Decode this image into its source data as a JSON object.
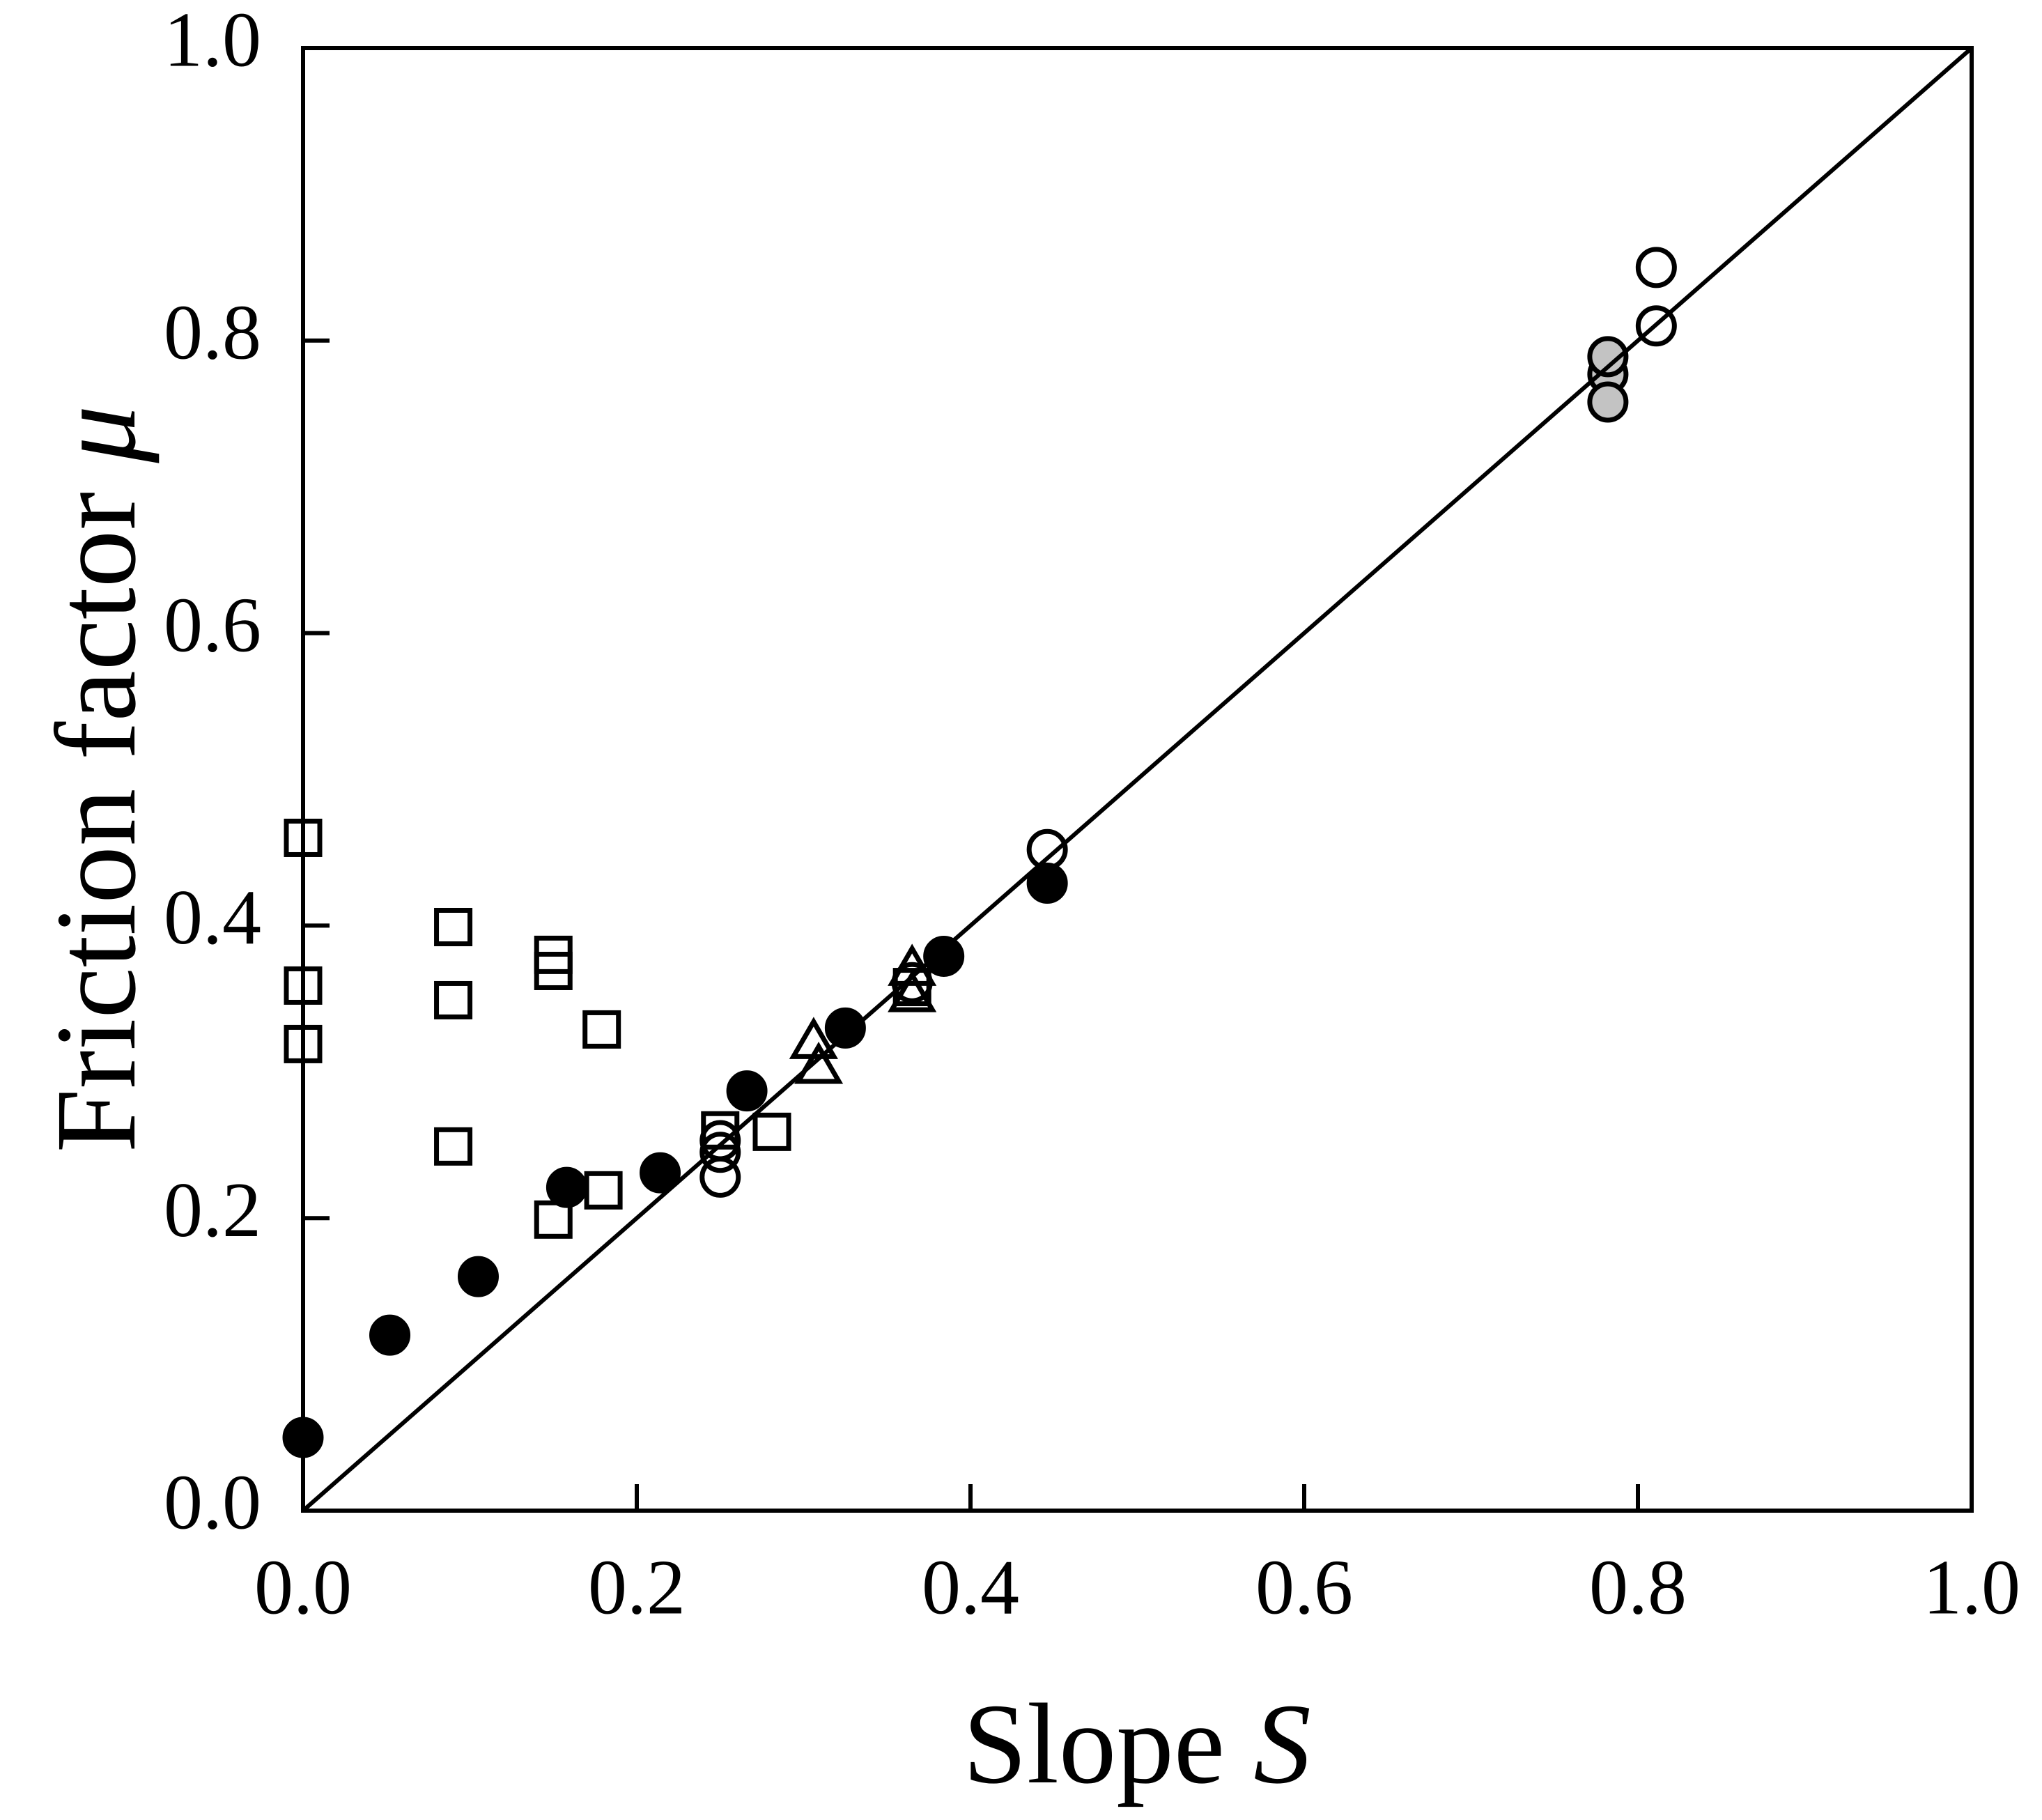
{
  "figure": {
    "background": "#ffffff",
    "ink": "#000000",
    "gray_fill": "#c3c3c3"
  },
  "chart_data": {
    "type": "scatter",
    "title": "",
    "xlabel": {
      "text": "Slope ",
      "symbol": "S"
    },
    "ylabel": {
      "text": "Friction factor ",
      "symbol": "μ"
    },
    "xlim": [
      0.0,
      1.0
    ],
    "ylim": [
      0.0,
      1.0
    ],
    "grid": false,
    "legend": "none",
    "x_ticks": [
      0.0,
      0.2,
      0.4,
      0.6,
      0.8,
      1.0
    ],
    "y_ticks": [
      0.0,
      0.2,
      0.4,
      0.6,
      0.8,
      1.0
    ],
    "x_tick_labels": [
      "0.0",
      "0.2",
      "0.4",
      "0.6",
      "0.8",
      "1.0"
    ],
    "y_tick_labels": [
      "0.0",
      "0.2",
      "0.4",
      "0.6",
      "0.8",
      "1.0"
    ],
    "reference_line": {
      "label": "identity-line",
      "from": [
        0.0,
        0.0
      ],
      "to": [
        1.0,
        1.0
      ]
    },
    "series": [
      {
        "name": "filled-circles",
        "marker": "circle",
        "fill": "#000000",
        "stroke": "#000000",
        "points": [
          [
            0.0,
            0.05
          ],
          [
            0.052,
            0.12
          ],
          [
            0.105,
            0.16
          ],
          [
            0.158,
            0.221
          ],
          [
            0.214,
            0.231
          ],
          [
            0.266,
            0.287
          ],
          [
            0.325,
            0.33
          ],
          [
            0.384,
            0.379
          ],
          [
            0.446,
            0.429
          ]
        ]
      },
      {
        "name": "open-circles",
        "marker": "circle",
        "fill": "none",
        "stroke": "#000000",
        "points": [
          [
            0.25,
            0.253
          ],
          [
            0.25,
            0.245
          ],
          [
            0.25,
            0.228
          ],
          [
            0.365,
            0.361
          ],
          [
            0.446,
            0.452
          ],
          [
            0.811,
            0.81
          ],
          [
            0.811,
            0.85
          ]
        ]
      },
      {
        "name": "gray-circles",
        "marker": "circle",
        "fill": "#c3c3c3",
        "stroke": "#000000",
        "points": [
          [
            0.782,
            0.777
          ],
          [
            0.782,
            0.758
          ],
          [
            0.782,
            0.789
          ]
        ]
      },
      {
        "name": "open-squares",
        "marker": "square",
        "fill": "none",
        "stroke": "#000000",
        "points": [
          [
            0.0,
            0.46
          ],
          [
            0.0,
            0.359
          ],
          [
            0.0,
            0.319
          ],
          [
            0.09,
            0.399
          ],
          [
            0.09,
            0.349
          ],
          [
            0.09,
            0.249
          ],
          [
            0.15,
            0.38
          ],
          [
            0.15,
            0.369
          ],
          [
            0.15,
            0.199
          ],
          [
            0.18,
            0.219
          ],
          [
            0.179,
            0.329
          ],
          [
            0.25,
            0.26
          ],
          [
            0.281,
            0.259
          ],
          [
            0.365,
            0.358
          ]
        ]
      },
      {
        "name": "open-triangles",
        "marker": "triangle",
        "fill": "none",
        "stroke": "#000000",
        "points": [
          [
            0.306,
            0.32
          ],
          [
            0.309,
            0.303
          ],
          [
            0.365,
            0.37
          ],
          [
            0.365,
            0.352
          ]
        ]
      }
    ]
  }
}
